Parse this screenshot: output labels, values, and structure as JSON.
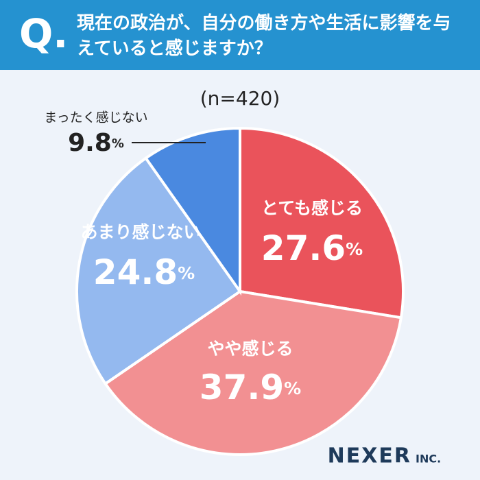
{
  "chart_data": {
    "type": "pie",
    "q_label": "Q.",
    "title": "現在の政治が、自分の働き方や生活に影響を与えていると感じますか？",
    "subtitle": "(n=420)",
    "categories": [
      "とても感じる",
      "やや感じる",
      "あまり感じない",
      "まったく感じない"
    ],
    "values": [
      27.6,
      37.9,
      24.8,
      9.8
    ],
    "value_labels": [
      "27.6%",
      "37.9%",
      "24.8%",
      "9.8%"
    ],
    "colors": [
      "#ea535b",
      "#f29092",
      "#94b9ef",
      "#4a89e0"
    ],
    "brand": "NEXER",
    "brand_suffix": "INC."
  }
}
